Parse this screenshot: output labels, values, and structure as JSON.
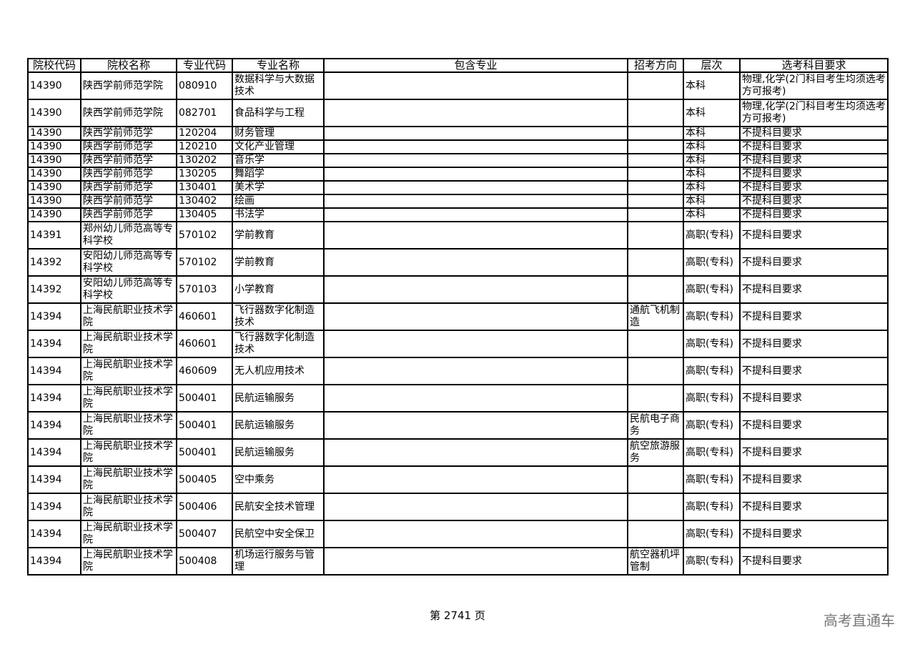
{
  "headers": [
    "院校代码",
    "院校名称",
    "专业代码",
    "专业名称",
    "包含专业",
    "招考方向",
    "层次",
    "选考科目要求"
  ],
  "rows": [
    {
      "h": 2,
      "cells": [
        "14390",
        "陕西学前师范学院",
        "080910",
        "数据科学与大数据技术",
        "",
        "",
        "本科",
        "物理,化学(2门科目考生均须选考方可报考)"
      ]
    },
    {
      "h": 2,
      "cells": [
        "14390",
        "陕西学前师范学院",
        "082701",
        "食品科学与工程",
        "",
        "",
        "本科",
        "物理,化学(2门科目考生均须选考方可报考)"
      ]
    },
    {
      "h": 1,
      "cells": [
        "14390",
        "陕西学前师范学",
        "120204",
        "财务管理",
        "",
        "",
        "本科",
        "不提科目要求"
      ]
    },
    {
      "h": 1,
      "cells": [
        "14390",
        "陕西学前师范学",
        "120210",
        "文化产业管理",
        "",
        "",
        "本科",
        "不提科目要求"
      ]
    },
    {
      "h": 1,
      "cells": [
        "14390",
        "陕西学前师范学",
        "130202",
        "音乐学",
        "",
        "",
        "本科",
        "不提科目要求"
      ]
    },
    {
      "h": 1,
      "cells": [
        "14390",
        "陕西学前师范学",
        "130205",
        "舞蹈学",
        "",
        "",
        "本科",
        "不提科目要求"
      ]
    },
    {
      "h": 1,
      "cells": [
        "14390",
        "陕西学前师范学",
        "130401",
        "美术学",
        "",
        "",
        "本科",
        "不提科目要求"
      ]
    },
    {
      "h": 1,
      "cells": [
        "14390",
        "陕西学前师范学",
        "130402",
        "绘画",
        "",
        "",
        "本科",
        "不提科目要求"
      ]
    },
    {
      "h": 1,
      "cells": [
        "14390",
        "陕西学前师范学",
        "130405",
        "书法学",
        "",
        "",
        "本科",
        "不提科目要求"
      ]
    },
    {
      "h": 2,
      "cells": [
        "14391",
        "郑州幼儿师范高等专科学校",
        "570102",
        "学前教育",
        "",
        "",
        "高职(专科)",
        "不提科目要求"
      ]
    },
    {
      "h": 2,
      "cells": [
        "14392",
        "安阳幼儿师范高等专科学校",
        "570102",
        "学前教育",
        "",
        "",
        "高职(专科)",
        "不提科目要求"
      ]
    },
    {
      "h": 2,
      "cells": [
        "14392",
        "安阳幼儿师范高等专科学校",
        "570103",
        "小学教育",
        "",
        "",
        "高职(专科)",
        "不提科目要求"
      ]
    },
    {
      "h": 2,
      "cells": [
        "14394",
        "上海民航职业技术学院",
        "460601",
        "飞行器数字化制造技术",
        "",
        "通航飞机制造",
        "高职(专科)",
        "不提科目要求"
      ]
    },
    {
      "h": 2,
      "cells": [
        "14394",
        "上海民航职业技术学院",
        "460601",
        "飞行器数字化制造技术",
        "",
        "",
        "高职(专科)",
        "不提科目要求"
      ]
    },
    {
      "h": 2,
      "cells": [
        "14394",
        "上海民航职业技术学院",
        "460609",
        "无人机应用技术",
        "",
        "",
        "高职(专科)",
        "不提科目要求"
      ]
    },
    {
      "h": 2,
      "cells": [
        "14394",
        "上海民航职业技术学院",
        "500401",
        "民航运输服务",
        "",
        "",
        "高职(专科)",
        "不提科目要求"
      ]
    },
    {
      "h": 2,
      "cells": [
        "14394",
        "上海民航职业技术学院",
        "500401",
        "民航运输服务",
        "",
        "民航电子商务",
        "高职(专科)",
        "不提科目要求"
      ]
    },
    {
      "h": 2,
      "cells": [
        "14394",
        "上海民航职业技术学院",
        "500401",
        "民航运输服务",
        "",
        "航空旅游服务",
        "高职(专科)",
        "不提科目要求"
      ]
    },
    {
      "h": 2,
      "cells": [
        "14394",
        "上海民航职业技术学院",
        "500405",
        "空中乘务",
        "",
        "",
        "高职(专科)",
        "不提科目要求"
      ]
    },
    {
      "h": 2,
      "cells": [
        "14394",
        "上海民航职业技术学院",
        "500406",
        "民航安全技术管理",
        "",
        "",
        "高职(专科)",
        "不提科目要求"
      ]
    },
    {
      "h": 2,
      "cells": [
        "14394",
        "上海民航职业技术学院",
        "500407",
        "民航空中安全保卫",
        "",
        "",
        "高职(专科)",
        "不提科目要求"
      ]
    },
    {
      "h": 2,
      "cells": [
        "14394",
        "上海民航职业技术学院",
        "500408",
        "机场运行服务与管理",
        "",
        "航空器机坪管制",
        "高职(专科)",
        "不提科目要求"
      ]
    }
  ],
  "footer": {
    "page_label": "第 2741 页"
  },
  "watermark": "高考直通车"
}
